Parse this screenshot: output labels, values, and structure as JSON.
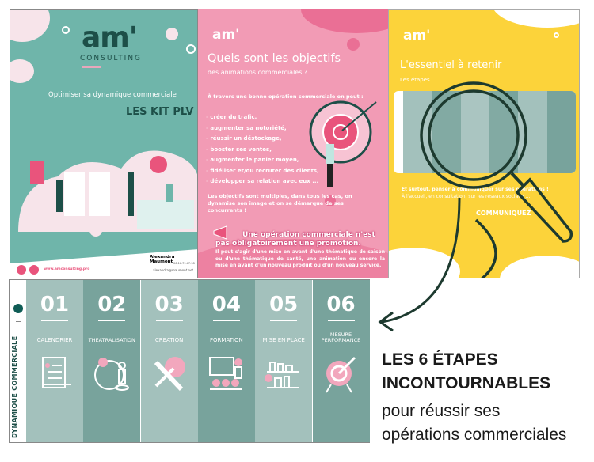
{
  "panel_teal": {
    "logo": "am'",
    "logo_sub": "CONSULTING",
    "subtitle": "Optimiser sa dynamique commerciale",
    "title": "LES KIT PLV",
    "contact_name": "Alexandra Maumont",
    "contact_phone": "06.16.79.67.98",
    "contact_email": "alexandra@maumont.net",
    "website": "www.amconsulting.pro"
  },
  "panel_pink": {
    "logo": "am'",
    "title": "Quels sont les objectifs",
    "subtitle": "des animations commerciales ?",
    "intro": "À travers une bonne opération commerciale on peut :",
    "objectives": [
      "créer du trafic,",
      "augmenter sa notoriété,",
      "réussir un déstockage,",
      "booster ses ventes,",
      "augmenter le panier moyen,",
      "fidéliser et/ou recruter des clients,",
      "développer sa relation avec eux ..."
    ],
    "summary": "Les objectifs sont multiples, dans tous les cas, on dynamise son image et on se démarque de ses concurrents !",
    "callout": "Une opération commerciale n'est pas obligatoirement une promotion.",
    "callout_detail": "Il peut s'agir d'une mise en avant d'une thématique de saison ou d'une thématique de santé, une animation ou encore la mise en avant d'un nouveau produit ou d'un nouveau service."
  },
  "panel_yellow": {
    "logo": "am'",
    "title": "L'essentiel à retenir",
    "subtitle": "Les étapes",
    "footer_line1": "Et surtout, penser à communiquer sur ses opérations !",
    "footer_line2": "À l'accueil, en consultation, sur les réseaux sociaux ...",
    "communicate": "COMMUNIQUEZ"
  },
  "steps_strip": {
    "side_label": "DYNAMIQUE COMMERCIALE",
    "steps": [
      {
        "num": "01",
        "label": "CALENDRIER",
        "icon": "calendar-checklist-icon"
      },
      {
        "num": "02",
        "label": "THEATRALISATION",
        "icon": "map-person-icon"
      },
      {
        "num": "03",
        "label": "CREATION",
        "icon": "pencil-bulb-icon"
      },
      {
        "num": "04",
        "label": "FORMATION",
        "icon": "training-board-icon"
      },
      {
        "num": "05",
        "label": "MISE EN PLACE",
        "icon": "shelves-icon"
      },
      {
        "num": "06",
        "label": "MESURE PERFORMANCE",
        "icon": "target-icon"
      }
    ]
  },
  "headline": {
    "line1": "LES 6 ÉTAPES",
    "line2": "INCONTOURNABLES",
    "line3": "pour réussir ses",
    "line4": "opérations commerciales"
  },
  "colors": {
    "teal": "#6fb5aa",
    "pink": "#f29bb5",
    "yellow": "#fcd33a",
    "dark_green": "#1d4f48",
    "col_light": "#a3c1bc",
    "col_dark": "#78a39c",
    "accent_pink": "#e9547c"
  }
}
